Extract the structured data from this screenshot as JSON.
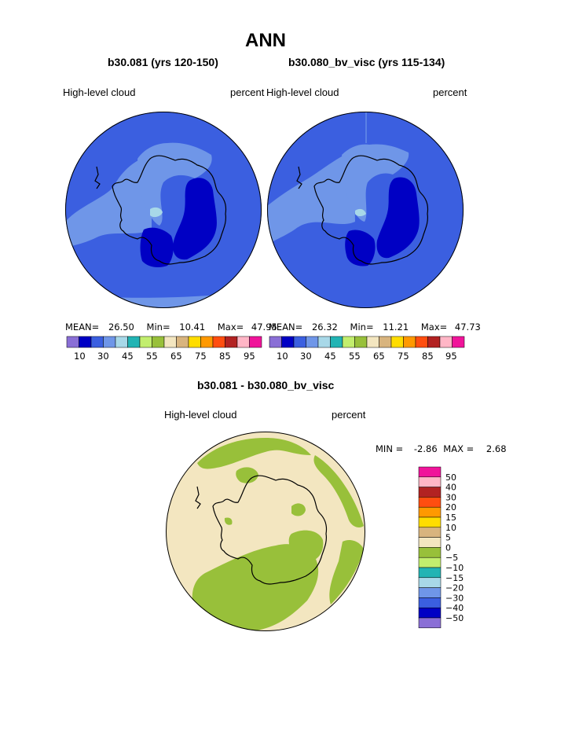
{
  "page_title": "ANN",
  "colors": {
    "abs_scale": [
      "#8a6fd6",
      "#0000c4",
      "#3b5fe0",
      "#6f96e8",
      "#a8d8e8",
      "#22b4b4",
      "#c2ee6e",
      "#98c03a",
      "#f3e6c0",
      "#d8b47e",
      "#ffdd00",
      "#ff9900",
      "#ff4e10",
      "#b22222",
      "#ffb6c6",
      "#f0149a"
    ],
    "diff_scale": [
      "#8a6fd6",
      "#0000c4",
      "#3b5fe0",
      "#6f96e8",
      "#a8d8e8",
      "#22b4b4",
      "#c2ee6e",
      "#98c03a",
      "#f3e6c0",
      "#d8b47e",
      "#ffdd00",
      "#ff9900",
      "#ff4e10",
      "#b22222",
      "#ffb6c6",
      "#f0149a"
    ],
    "ocean_dominant": "#3b5fe0",
    "diff_background": "#f3e6c0",
    "diff_negative": "#98c03a"
  },
  "chart_data": [
    {
      "type": "heatmap",
      "projection": "south polar stereographic",
      "title": "b30.081 (yrs 120-150)",
      "left_label": "High-level cloud",
      "right_label": "percent",
      "stats": {
        "mean_label": "MEAN=",
        "mean": "26.50",
        "min_label": "Min=",
        "min": "10.41",
        "max_label": "Max=",
        "max": "47.95"
      },
      "colorbar_ticks": [
        "10",
        "30",
        "45",
        "55",
        "65",
        "75",
        "85",
        "95"
      ]
    },
    {
      "type": "heatmap",
      "projection": "south polar stereographic",
      "title": "b30.080_bv_visc (yrs 115-134)",
      "left_label": "High-level cloud",
      "right_label": "percent",
      "stats": {
        "mean_label": "MEAN=",
        "mean": "26.32",
        "min_label": "Min=",
        "min": "11.21",
        "max_label": "Max=",
        "max": "47.73"
      },
      "colorbar_ticks": [
        "10",
        "30",
        "45",
        "55",
        "65",
        "75",
        "85",
        "95"
      ]
    },
    {
      "type": "heatmap",
      "projection": "south polar stereographic",
      "title": "b30.081 - b30.080_bv_visc",
      "left_label": "High-level cloud",
      "right_label": "percent",
      "stats": {
        "min_label": "MIN =",
        "min": "-2.86",
        "max_label": "MAX =",
        "max": "2.68"
      },
      "colorbar_levels": [
        "50",
        "40",
        "30",
        "20",
        "15",
        "10",
        "5",
        "0",
        "-5",
        "-10",
        "-15",
        "-20",
        "-30",
        "-40",
        "-50"
      ]
    }
  ]
}
